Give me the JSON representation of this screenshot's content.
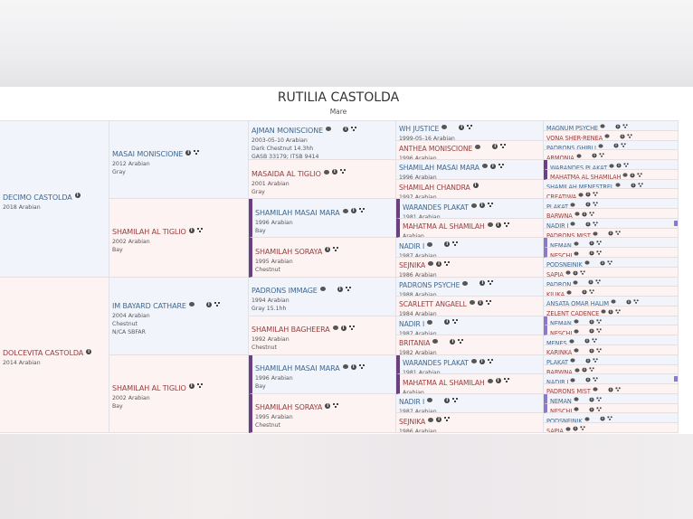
{
  "horse": {
    "name": "RUTILIA CASTOLDA",
    "sex": "Mare"
  },
  "colors": {
    "male_text": "#3f6690",
    "female_text": "#9a3b3b",
    "male_bg": "#f1f5fb",
    "female_bg": "#fdf3f2",
    "inbreeding_bar": "#6b3f80",
    "inbreeding_bar_light": "#8c7ac8"
  },
  "gen1": [
    {
      "name": "DECIMO CASTOLDA",
      "sex": "m",
      "lines": [
        "2018 Arabian"
      ],
      "icons": [
        "info"
      ]
    },
    {
      "name": "DOLCEVITA CASTOLDA",
      "sex": "f",
      "lines": [
        "2014 Arabian"
      ],
      "icons": [
        "info"
      ]
    }
  ],
  "gen2": [
    {
      "name": "MASAI MONISCIONE",
      "sex": "m",
      "lines": [
        "2012 Arabian",
        "Gray"
      ],
      "icons": [
        "info",
        "tree"
      ]
    },
    {
      "name": "SHAMILAH AL TIGLIO",
      "sex": "f",
      "lines": [
        "2002 Arabian",
        "Bay"
      ],
      "icons": [
        "info",
        "tree"
      ]
    },
    {
      "name": "IM BAYARD CATHARE",
      "sex": "m",
      "lines": [
        "2004 Arabian",
        "Chestnut",
        "N/CA SBFAR"
      ],
      "icons": [
        "chat",
        "image",
        "info",
        "tree"
      ]
    },
    {
      "name": "SHAMILAH AL TIGLIO",
      "sex": "f",
      "lines": [
        "2002 Arabian",
        "Bay"
      ],
      "icons": [
        "info",
        "tree"
      ]
    }
  ],
  "gen3": [
    {
      "name": "AJMAN MONISCIONE",
      "sex": "m",
      "lines": [
        "2003-05-10 Arabian",
        "Dark Chestnut 14.3hh",
        "GASB 33179; ITSB 9414"
      ],
      "icons": [
        "chat",
        "image",
        "info",
        "tree"
      ]
    },
    {
      "name": "MASAIDA AL TIGLIO",
      "sex": "f",
      "lines": [
        "2001 Arabian",
        "Gray"
      ],
      "icons": [
        "chat",
        "info",
        "tree"
      ]
    },
    {
      "name": "SHAMILAH MASAI MARA",
      "sex": "m",
      "lines": [
        "1996 Arabian",
        "Bay"
      ],
      "icons": [
        "chat",
        "info",
        "tree"
      ],
      "bar": "barL"
    },
    {
      "name": "SHAMILAH SORAYA",
      "sex": "f",
      "lines": [
        "1995 Arabian",
        "Chestnut"
      ],
      "icons": [
        "info",
        "tree"
      ],
      "bar": "barL"
    },
    {
      "name": "PADRONS IMMAGE",
      "sex": "m",
      "lines": [
        "1994 Arabian",
        "Gray 15.1hh"
      ],
      "icons": [
        "chat",
        "image",
        "info",
        "tree"
      ]
    },
    {
      "name": "SHAMILAH BAGHEERA",
      "sex": "f",
      "lines": [
        "1992 Arabian",
        "Chestnut"
      ],
      "icons": [
        "chat",
        "info",
        "tree"
      ]
    },
    {
      "name": "SHAMILAH MASAI MARA",
      "sex": "m",
      "lines": [
        "1996 Arabian",
        "Bay"
      ],
      "icons": [
        "chat",
        "info",
        "tree"
      ],
      "bar": "barL"
    },
    {
      "name": "SHAMILAH SORAYA",
      "sex": "f",
      "lines": [
        "1995 Arabian",
        "Chestnut"
      ],
      "icons": [
        "info",
        "tree"
      ],
      "bar": "barL"
    }
  ],
  "gen4": [
    {
      "name": "WH JUSTICE",
      "sex": "m",
      "lines": [
        "1999-05-16 Arabian"
      ],
      "icons": [
        "chat",
        "image",
        "info",
        "tree"
      ]
    },
    {
      "name": "ANTHEA MONISCIONE",
      "sex": "f",
      "lines": [
        "1996 Arabian"
      ],
      "icons": [
        "chat",
        "image",
        "info",
        "tree"
      ]
    },
    {
      "name": "SHAMILAH MASAI MARA",
      "sex": "m",
      "lines": [
        "1996 Arabian"
      ],
      "icons": [
        "chat",
        "info",
        "tree"
      ]
    },
    {
      "name": "SHAMILAH CHANDRA",
      "sex": "f",
      "lines": [
        "1997 Arabian"
      ],
      "icons": [
        "info"
      ]
    },
    {
      "name": "WARANDES PLAKAT",
      "sex": "m",
      "lines": [
        "1981 Arabian"
      ],
      "icons": [
        "chat",
        "info",
        "tree"
      ],
      "bar": "barL"
    },
    {
      "name": "MAHATMA AL SHAMILAH",
      "sex": "f",
      "lines": [
        "Arabian"
      ],
      "icons": [
        "chat",
        "info",
        "tree"
      ],
      "bar": "barL"
    },
    {
      "name": "NADIR I",
      "sex": "m",
      "lines": [
        "1987 Arabian"
      ],
      "icons": [
        "chat",
        "image",
        "info",
        "tree"
      ]
    },
    {
      "name": "SEJNIKA",
      "sex": "f",
      "lines": [
        "1986 Arabian"
      ],
      "icons": [
        "chat",
        "info",
        "tree"
      ]
    },
    {
      "name": "PADRONS PSYCHE",
      "sex": "m",
      "lines": [
        "1988 Arabian"
      ],
      "icons": [
        "chat",
        "image",
        "info",
        "tree"
      ]
    },
    {
      "name": "SCARLETT ANGAELL",
      "sex": "f",
      "lines": [
        "1984 Arabian"
      ],
      "icons": [
        "chat",
        "info",
        "tree"
      ]
    },
    {
      "name": "NADIR I",
      "sex": "m",
      "lines": [
        "1987 Arabian"
      ],
      "icons": [
        "chat",
        "image",
        "info",
        "tree"
      ]
    },
    {
      "name": "BRITANIA",
      "sex": "f",
      "lines": [
        "1982 Arabian"
      ],
      "icons": [
        "chat",
        "image",
        "info",
        "tree"
      ]
    },
    {
      "name": "WARANDES PLAKAT",
      "sex": "m",
      "lines": [
        "1981 Arabian"
      ],
      "icons": [
        "chat",
        "info",
        "tree"
      ],
      "bar": "barL"
    },
    {
      "name": "MAHATMA AL SHAMILAH",
      "sex": "f",
      "lines": [
        "Arabian"
      ],
      "icons": [
        "chat",
        "info",
        "tree"
      ],
      "bar": "barL"
    },
    {
      "name": "NADIR I",
      "sex": "m",
      "lines": [
        "1987 Arabian"
      ],
      "icons": [
        "chat",
        "image",
        "info",
        "tree"
      ]
    },
    {
      "name": "SEJNIKA",
      "sex": "f",
      "lines": [
        "1986 Arabian"
      ],
      "icons": [
        "chat",
        "info",
        "tree"
      ]
    }
  ],
  "gen5": [
    {
      "name": "MAGNUM PSYCHE",
      "sex": "m",
      "icons": [
        "chat",
        "image",
        "info",
        "tree"
      ]
    },
    {
      "name": "VONA SHER-RENEA",
      "sex": "f",
      "icons": [
        "chat",
        "image",
        "info",
        "tree"
      ]
    },
    {
      "name": "PADRONS GHIBLI",
      "sex": "m",
      "icons": [
        "chat",
        "image",
        "info",
        "tree"
      ]
    },
    {
      "name": "ARMONIA",
      "sex": "f",
      "icons": [
        "chat",
        "image",
        "info",
        "tree"
      ]
    },
    {
      "name": "WARANDES PLAKAT",
      "sex": "m",
      "icons": [
        "chat",
        "info",
        "tree"
      ],
      "bar": "barL"
    },
    {
      "name": "MAHATMA AL SHAMILAH",
      "sex": "f",
      "icons": [
        "chat",
        "info",
        "tree"
      ],
      "bar": "barL"
    },
    {
      "name": "SHAMILAH MENESTREL",
      "sex": "m",
      "icons": [
        "chat",
        "image",
        "info",
        "tree"
      ]
    },
    {
      "name": "CREATIWA",
      "sex": "f",
      "icons": [
        "chat",
        "info",
        "tree"
      ]
    },
    {
      "name": "PLAKAT",
      "sex": "m",
      "icons": [
        "chat",
        "image",
        "info",
        "tree"
      ]
    },
    {
      "name": "BARWNA",
      "sex": "f",
      "icons": [
        "chat",
        "info",
        "tree"
      ]
    },
    {
      "name": "NADIR I",
      "sex": "m",
      "icons": [
        "chat",
        "image",
        "info",
        "tree"
      ],
      "bar": "barRl"
    },
    {
      "name": "PADRONS MIST",
      "sex": "f",
      "icons": [
        "chat",
        "image",
        "info",
        "tree"
      ]
    },
    {
      "name": "NEMAN",
      "sex": "m",
      "icons": [
        "chat",
        "image",
        "info",
        "tree"
      ],
      "bar": "barLl"
    },
    {
      "name": "NESCHI",
      "sex": "f",
      "icons": [
        "chat",
        "image",
        "info",
        "tree"
      ],
      "bar": "barLl"
    },
    {
      "name": "PODSNEJNIK",
      "sex": "m",
      "icons": [
        "chat",
        "image",
        "info",
        "tree"
      ]
    },
    {
      "name": "SAPIA",
      "sex": "f",
      "icons": [
        "chat",
        "info",
        "tree"
      ]
    },
    {
      "name": "PADRON",
      "sex": "m",
      "icons": [
        "chat",
        "image",
        "info",
        "tree"
      ]
    },
    {
      "name": "KILIKA",
      "sex": "f",
      "icons": [
        "chat",
        "image",
        "info",
        "tree"
      ]
    },
    {
      "name": "ANSATA OMAR HALIM",
      "sex": "m",
      "icons": [
        "chat",
        "image",
        "info",
        "tree"
      ]
    },
    {
      "name": "ZELENT CADENCE",
      "sex": "f",
      "icons": [
        "chat",
        "info",
        "tree"
      ]
    },
    {
      "name": "NEMAN",
      "sex": "m",
      "icons": [
        "chat",
        "image",
        "info",
        "tree"
      ],
      "bar": "barLl"
    },
    {
      "name": "NESCHI",
      "sex": "f",
      "icons": [
        "chat",
        "image",
        "info",
        "tree"
      ],
      "bar": "barLl"
    },
    {
      "name": "MENES",
      "sex": "m",
      "icons": [
        "chat",
        "image",
        "info",
        "tree"
      ]
    },
    {
      "name": "KARINKA",
      "sex": "f",
      "icons": [
        "chat",
        "image",
        "info",
        "tree"
      ]
    },
    {
      "name": "PLAKAT",
      "sex": "m",
      "icons": [
        "chat",
        "image",
        "info",
        "tree"
      ]
    },
    {
      "name": "BARWNA",
      "sex": "f",
      "icons": [
        "chat",
        "info",
        "tree"
      ]
    },
    {
      "name": "NADIR I",
      "sex": "m",
      "icons": [
        "chat",
        "image",
        "info",
        "tree"
      ],
      "bar": "barRl"
    },
    {
      "name": "PADRONS MIST",
      "sex": "f",
      "icons": [
        "chat",
        "image",
        "info",
        "tree"
      ]
    },
    {
      "name": "NEMAN",
      "sex": "m",
      "icons": [
        "chat",
        "image",
        "info",
        "tree"
      ],
      "bar": "barLl"
    },
    {
      "name": "NESCHI",
      "sex": "f",
      "icons": [
        "chat",
        "image",
        "info",
        "tree"
      ],
      "bar": "barLl"
    },
    {
      "name": "PODSNEJNIK",
      "sex": "m",
      "icons": [
        "chat",
        "image",
        "info",
        "tree"
      ]
    },
    {
      "name": "SAPIA",
      "sex": "f",
      "icons": [
        "chat",
        "info",
        "tree"
      ]
    }
  ]
}
